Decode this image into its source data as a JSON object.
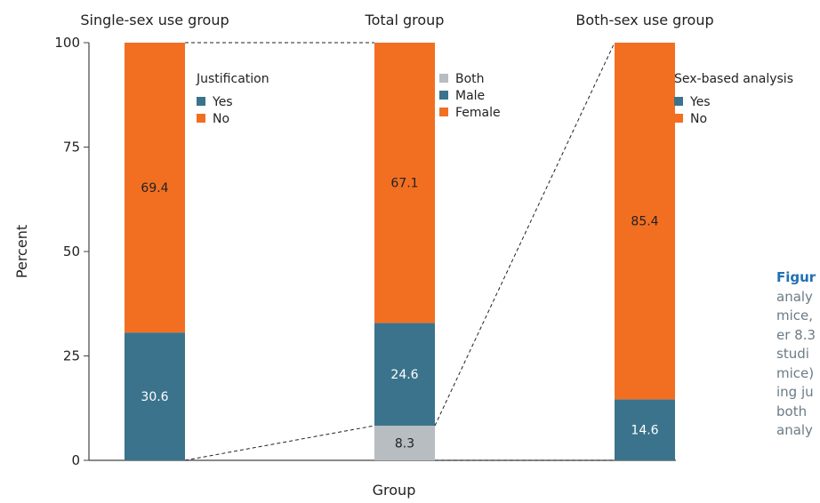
{
  "colors": {
    "orange": "#f26f22",
    "teal": "#3b738c",
    "gray": "#b8bdc2",
    "axis": "#444444",
    "text": "#222222",
    "caption_text": "#6b7b86",
    "caption_title": "#1f70b4"
  },
  "chart_data": {
    "type": "bar",
    "stacked": true,
    "ylabel": "Percent",
    "xlabel": "Group",
    "ylim": [
      0,
      100
    ],
    "yticks": [
      0,
      25,
      50,
      75,
      100
    ],
    "grid": false,
    "groups": [
      {
        "name": "Single-sex use group",
        "segments": [
          {
            "label": "Yes",
            "value": 30.6,
            "color": "#3b738c",
            "data_label": "30.6"
          },
          {
            "label": "No",
            "value": 69.4,
            "color": "#f26f22",
            "data_label": "69.4"
          }
        ],
        "legend": {
          "title": "Justification",
          "items": [
            {
              "label": "Yes",
              "color": "#3b738c"
            },
            {
              "label": "No",
              "color": "#f26f22"
            }
          ]
        }
      },
      {
        "name": "Total group",
        "segments": [
          {
            "label": "Both",
            "value": 8.3,
            "color": "#b8bdc2",
            "data_label": "8.3"
          },
          {
            "label": "Male",
            "value": 24.6,
            "color": "#3b738c",
            "data_label": "24.6"
          },
          {
            "label": "Female",
            "value": 67.1,
            "color": "#f26f22",
            "data_label": "67.1"
          }
        ],
        "legend": {
          "title": "",
          "items": [
            {
              "label": "Both",
              "color": "#b8bdc2"
            },
            {
              "label": "Male",
              "color": "#3b738c"
            },
            {
              "label": "Female",
              "color": "#f26f22"
            }
          ]
        }
      },
      {
        "name": "Both-sex use group",
        "segments": [
          {
            "label": "Yes",
            "value": 14.6,
            "color": "#3b738c",
            "data_label": "14.6"
          },
          {
            "label": "No",
            "value": 85.4,
            "color": "#f26f22",
            "data_label": "85.4"
          }
        ],
        "legend": {
          "title": "Sex-based analysis",
          "items": [
            {
              "label": "Yes",
              "color": "#3b738c"
            },
            {
              "label": "No",
              "color": "#f26f22"
            }
          ]
        }
      }
    ],
    "connectors": [
      {
        "from_group": 0,
        "to_group": 1,
        "note": "Single-sex share expands from Total group Female segment top and bottom"
      },
      {
        "from_group": 1,
        "to_group": 2,
        "note": "Both segment of Total group expands to Both-sex use group"
      }
    ]
  },
  "caption": {
    "title": "Figur",
    "lines": [
      "analy",
      "mice,",
      "er 8.3",
      "studi",
      "mice)",
      "ing ju",
      "both",
      "analy"
    ]
  }
}
